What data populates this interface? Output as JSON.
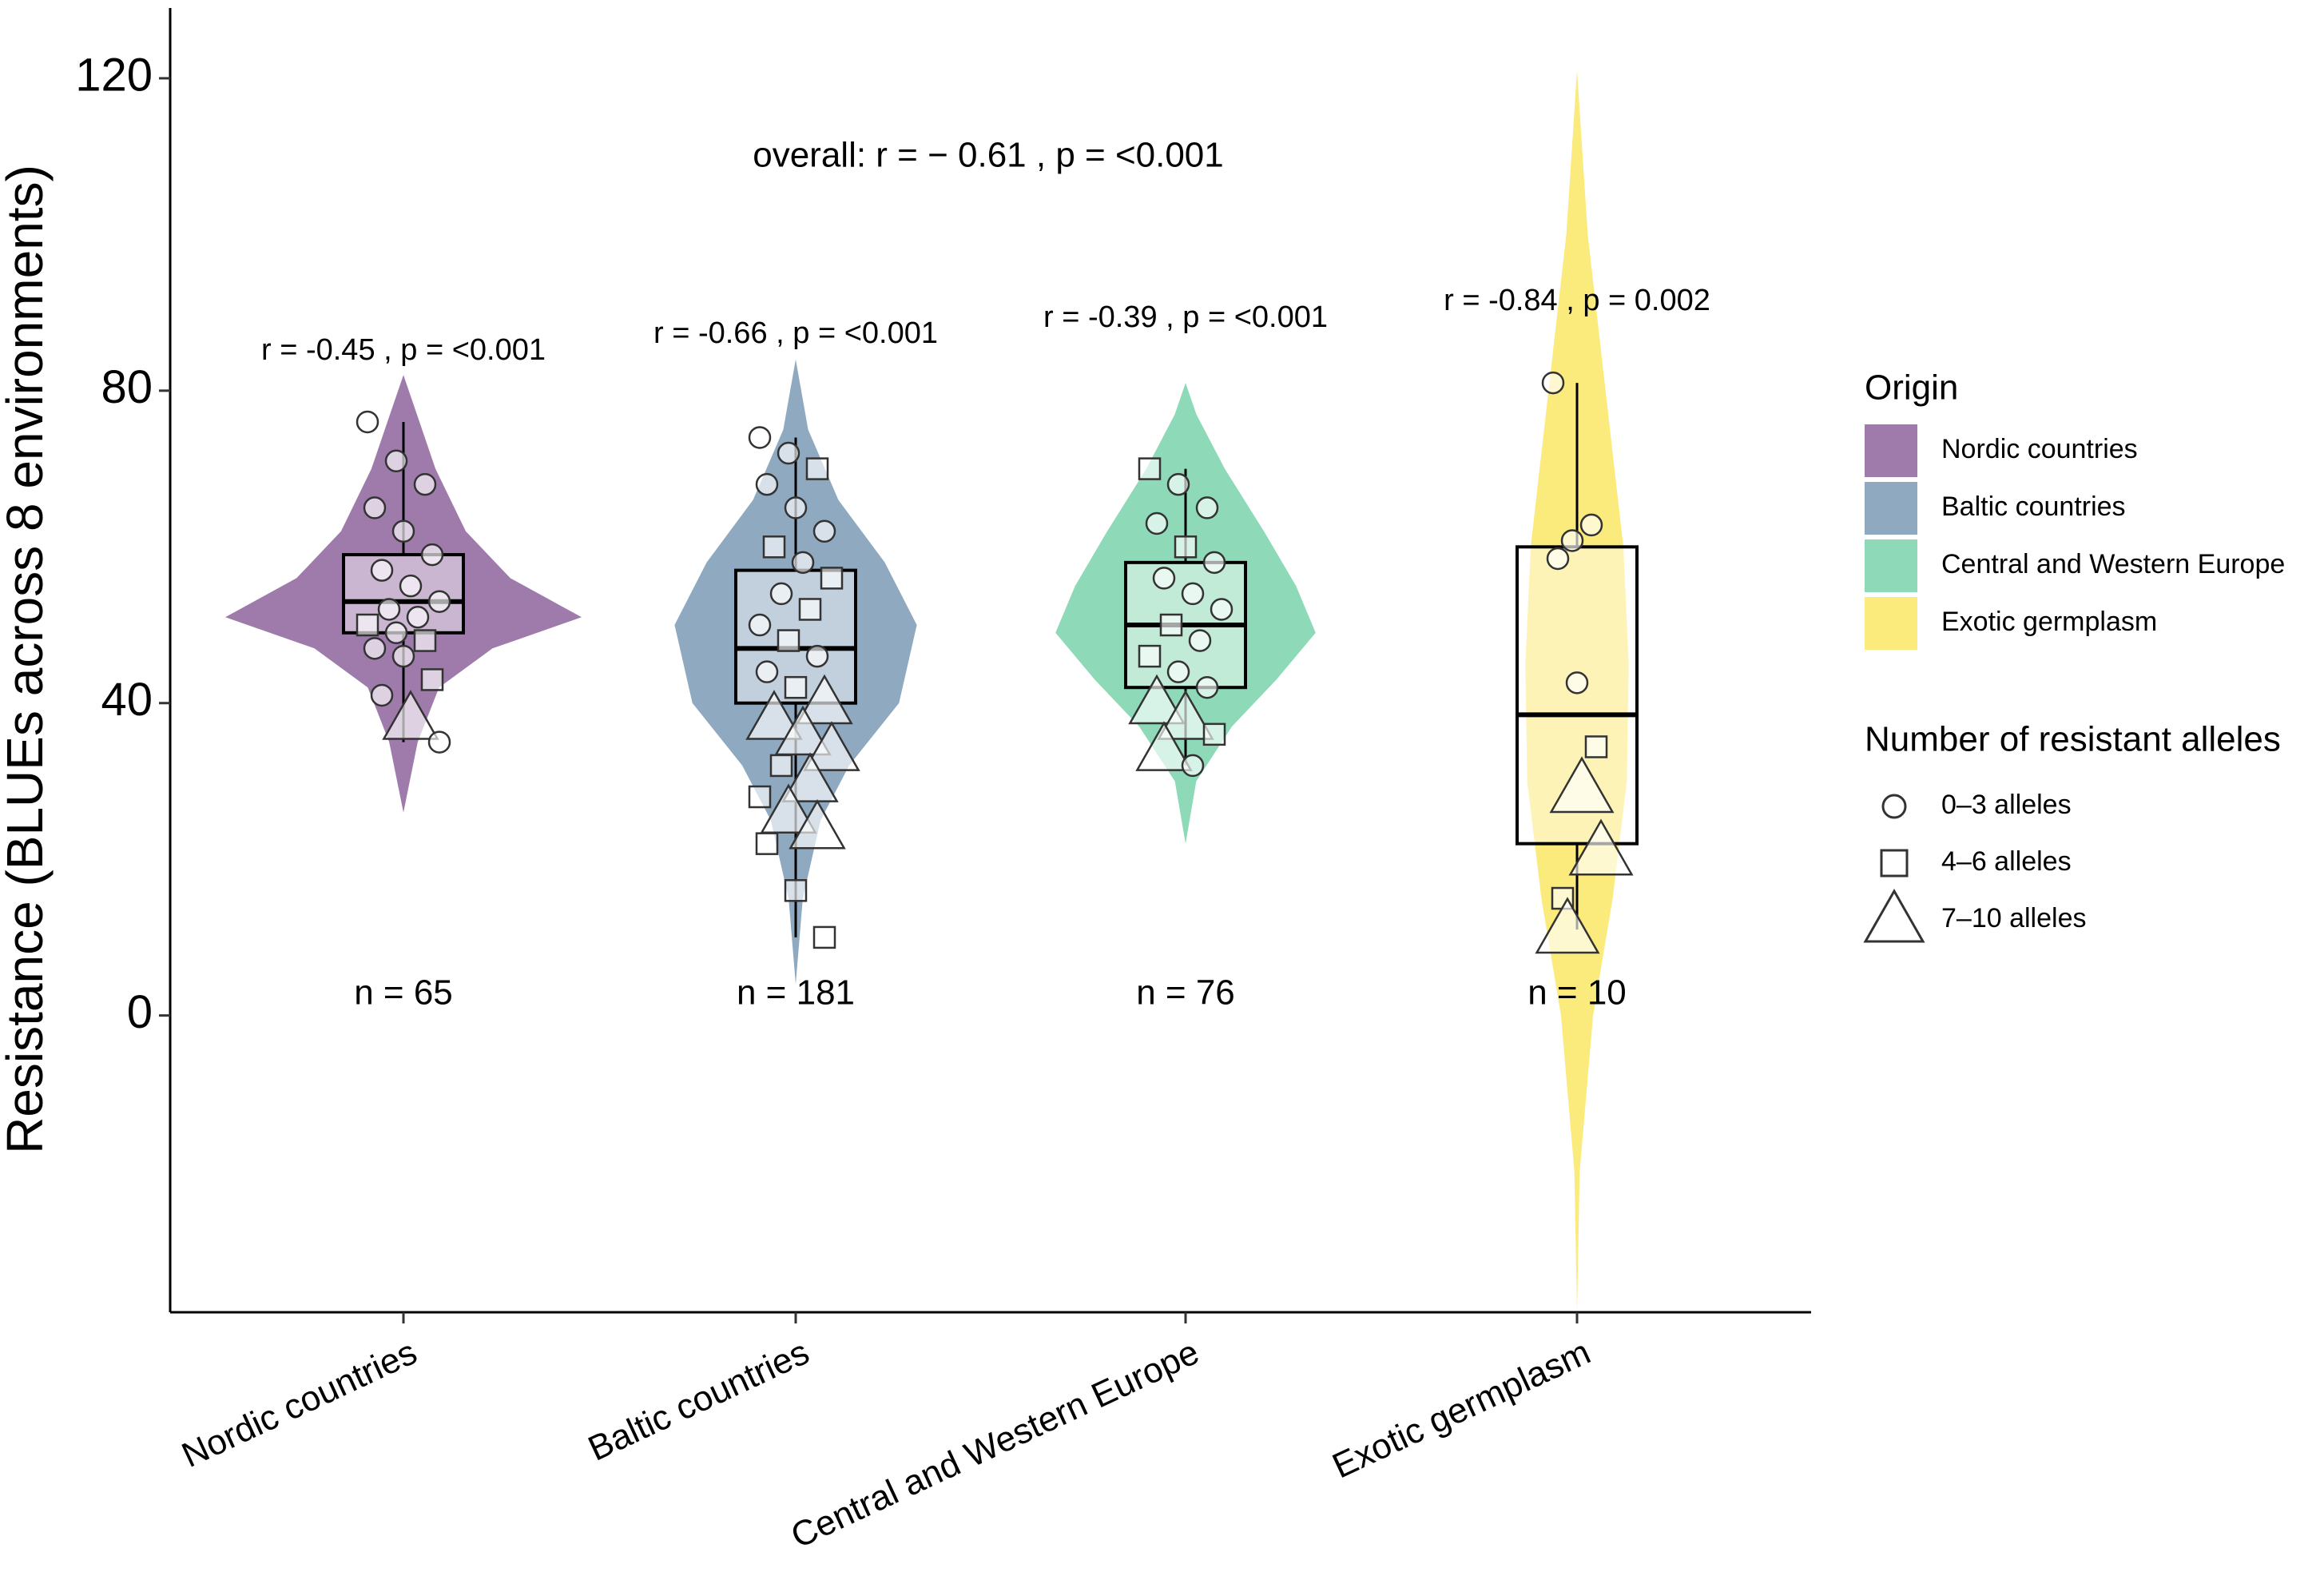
{
  "chart_data": {
    "type": "violin",
    "y_label": "Resistance (BLUEs across 8 environments)",
    "annotation": "overall: r = − 0.61 , p = <0.001",
    "categories": [
      "Nordic countries",
      "Baltic countries",
      "Central and Western Europe",
      "Exotic germplasm"
    ],
    "ylim": [
      -38,
      129
    ],
    "yticks": [
      0,
      40,
      80,
      120
    ],
    "legend_title": "Origin",
    "shape_legend_title": "Number of resistant alleles",
    "shape_legend": [
      {
        "label": "0–3 alleles",
        "shape": "circle"
      },
      {
        "label": "4–6 alleles",
        "shape": "square"
      },
      {
        "label": "7–10 alleles",
        "shape": "triangle"
      }
    ],
    "series": [
      {
        "name": "Nordic countries",
        "color": "#9e7bab",
        "stat_label": "r = -0.45 , p = <0.001",
        "n_label": "n = 65",
        "violin": {
          "y": [
            26,
            35,
            42,
            47,
            51,
            56,
            62,
            70,
            78,
            82
          ],
          "density": [
            0,
            0.08,
            0.2,
            0.5,
            1,
            0.6,
            0.35,
            0.18,
            0.06,
            0
          ]
        },
        "box": {
          "min": 35,
          "q1": 49,
          "median": 53,
          "q3": 59,
          "max": 76
        },
        "values": [
          76,
          71,
          68,
          65,
          62,
          59,
          57,
          55,
          53,
          52,
          51,
          50,
          49,
          48,
          47,
          46,
          43,
          41,
          38,
          35
        ],
        "shapes": [
          0,
          0,
          0,
          0,
          0,
          0,
          0,
          0,
          0,
          0,
          0,
          1,
          0,
          1,
          0,
          0,
          1,
          0,
          2,
          0
        ]
      },
      {
        "name": "Baltic countries",
        "color": "#8fa9c0",
        "stat_label": "r = -0.66 , p = <0.001",
        "n_label": "n = 181",
        "violin": {
          "y": [
            4,
            15,
            25,
            32,
            40,
            50,
            58,
            66,
            75,
            84
          ],
          "density": [
            0,
            0.04,
            0.14,
            0.3,
            0.58,
            0.68,
            0.5,
            0.24,
            0.07,
            0
          ]
        },
        "box": {
          "min": 10,
          "q1": 40,
          "median": 47,
          "q3": 57,
          "max": 74
        },
        "values": [
          74,
          72,
          70,
          68,
          65,
          62,
          60,
          58,
          56,
          54,
          52,
          50,
          48,
          46,
          44,
          42,
          40,
          38,
          36,
          34,
          32,
          30,
          28,
          26,
          24,
          22,
          16,
          10
        ],
        "shapes": [
          0,
          0,
          1,
          0,
          0,
          0,
          1,
          0,
          1,
          0,
          1,
          0,
          1,
          0,
          0,
          1,
          2,
          2,
          2,
          2,
          1,
          2,
          1,
          2,
          2,
          1,
          1,
          1
        ]
      },
      {
        "name": "Central and Western Europe",
        "color": "#8ed9b7",
        "stat_label": "r = -0.39 , p = <0.001",
        "n_label": "n = 76",
        "violin": {
          "y": [
            22,
            30,
            37,
            43,
            49,
            55,
            62,
            70,
            77,
            81
          ],
          "density": [
            0,
            0.06,
            0.26,
            0.51,
            0.73,
            0.62,
            0.44,
            0.22,
            0.06,
            0
          ]
        },
        "box": {
          "min": 32,
          "q1": 42,
          "median": 50,
          "q3": 58,
          "max": 70
        },
        "values": [
          70,
          68,
          65,
          63,
          60,
          58,
          56,
          54,
          52,
          50,
          48,
          46,
          44,
          42,
          40,
          38,
          36,
          34,
          32
        ],
        "shapes": [
          1,
          0,
          0,
          0,
          1,
          0,
          0,
          0,
          0,
          1,
          0,
          1,
          0,
          0,
          2,
          2,
          1,
          2,
          0
        ]
      },
      {
        "name": "Exotic germplasm",
        "color": "#fbea7c",
        "stat_label": "r = -0.84 , p = 0.002",
        "n_label": "n = 10",
        "violin": {
          "y": [
            -38,
            -20,
            0,
            15,
            30,
            45,
            60,
            80,
            100,
            121
          ],
          "density": [
            0,
            0.015,
            0.09,
            0.2,
            0.28,
            0.29,
            0.26,
            0.16,
            0.06,
            0
          ]
        },
        "box": {
          "min": 11,
          "q1": 22,
          "median": 38.5,
          "q3": 60,
          "max": 81
        },
        "values": [
          81,
          60.8,
          62.8,
          58.5,
          42.6,
          34.4,
          15,
          29,
          21,
          11
        ],
        "shapes": [
          0,
          0,
          0,
          0,
          0,
          1,
          1,
          2,
          2,
          2
        ]
      }
    ]
  }
}
